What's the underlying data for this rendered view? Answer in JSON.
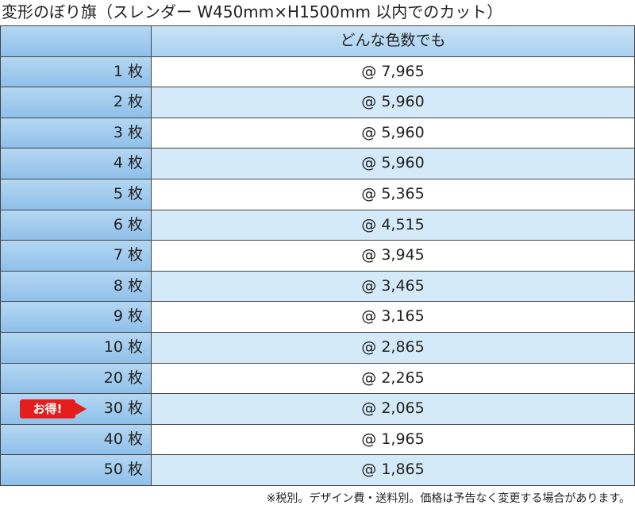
{
  "title": "変形のぼり旗（スレンダー W450mm×H1500mm 以内でのカット）",
  "table": {
    "header": "どんな色数でも",
    "rows": [
      {
        "qty": "1 枚",
        "price": "@ 7,965"
      },
      {
        "qty": "2 枚",
        "price": "@ 5,960"
      },
      {
        "qty": "3 枚",
        "price": "@ 5,960"
      },
      {
        "qty": "4 枚",
        "price": "@ 5,960"
      },
      {
        "qty": "5 枚",
        "price": "@ 5,365"
      },
      {
        "qty": "6 枚",
        "price": "@ 4,515"
      },
      {
        "qty": "7 枚",
        "price": "@ 3,945"
      },
      {
        "qty": "8 枚",
        "price": "@ 3,465"
      },
      {
        "qty": "9 枚",
        "price": "@ 3,165"
      },
      {
        "qty": "10 枚",
        "price": "@ 2,865"
      },
      {
        "qty": "20 枚",
        "price": "@ 2,265"
      },
      {
        "qty": "30 枚",
        "price": "@ 2,065",
        "badge": "お得!"
      },
      {
        "qty": "40 枚",
        "price": "@ 1,965"
      },
      {
        "qty": "50 枚",
        "price": "@ 1,865"
      }
    ]
  },
  "footnote": "※税別。デザイン費・送料別。価格は予告なく変更する場合があります。"
}
